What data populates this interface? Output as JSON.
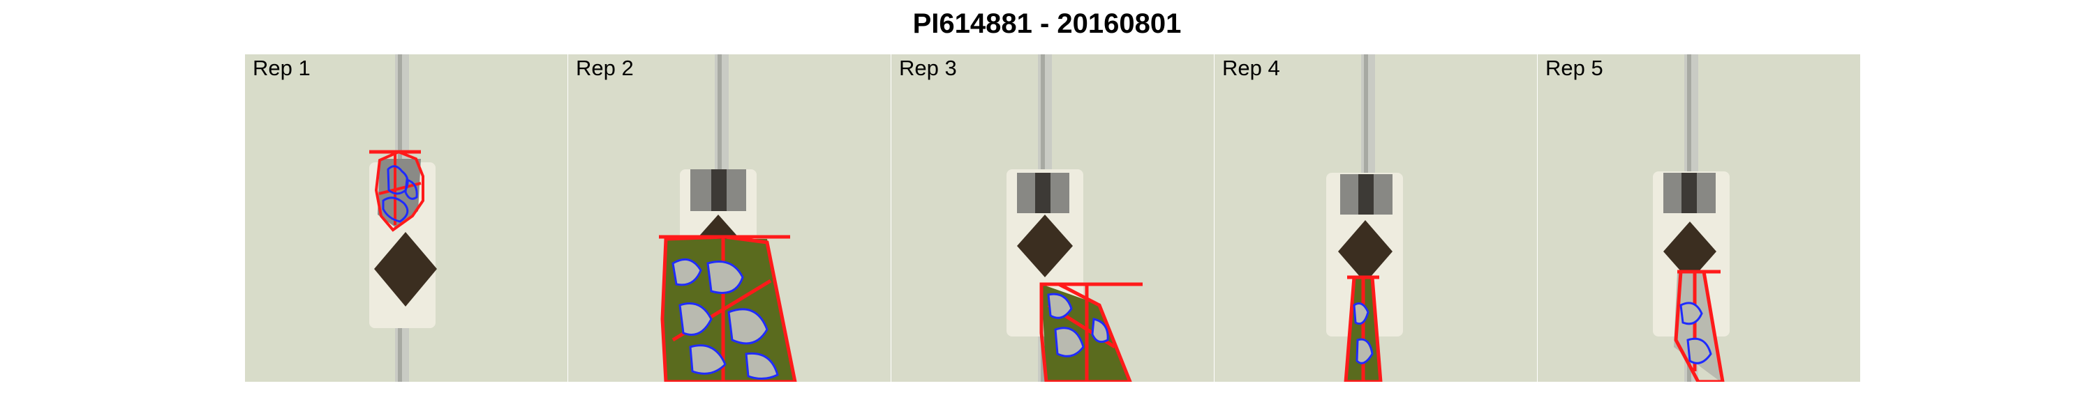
{
  "title": "PI614881 - 20160801",
  "colors": {
    "background": "#d9dccb",
    "marker": "#ff1a1a",
    "outline": "#1f2bff",
    "plant": "#5a6b1e",
    "pot": "#3b2e20",
    "tray": "#eeecdf"
  },
  "panels": [
    {
      "label": "Rep 1",
      "size": "small"
    },
    {
      "label": "Rep 2",
      "size": "large"
    },
    {
      "label": "Rep 3",
      "size": "medium"
    },
    {
      "label": "Rep 4",
      "size": "narrow"
    },
    {
      "label": "Rep 5",
      "size": "narrow"
    }
  ]
}
